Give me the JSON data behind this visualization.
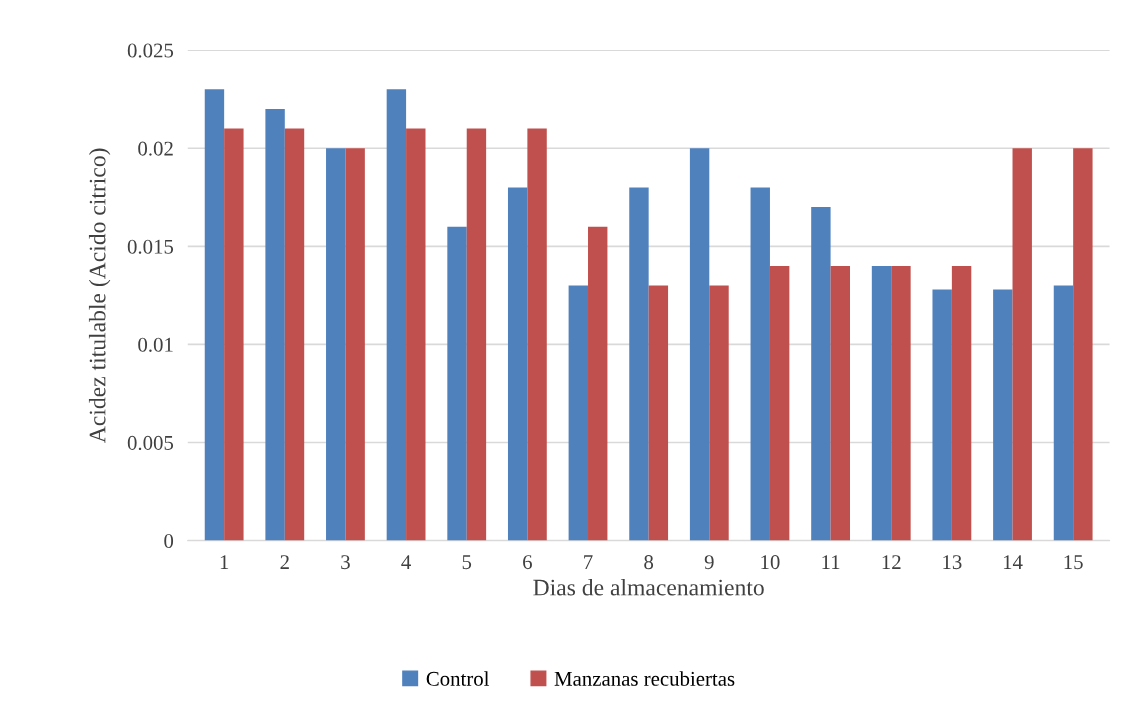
{
  "chart_data": {
    "type": "bar",
    "xlabel": "Dias de almacenamiento",
    "ylabel": "Acidez titulable (Acido citrico)",
    "categories": [
      "1",
      "2",
      "3",
      "4",
      "5",
      "6",
      "7",
      "8",
      "9",
      "10",
      "11",
      "12",
      "13",
      "14",
      "15"
    ],
    "series": [
      {
        "name": "Control",
        "color": "#4f81bd",
        "values": [
          0.023,
          0.022,
          0.02,
          0.023,
          0.016,
          0.018,
          0.013,
          0.018,
          0.02,
          0.018,
          0.017,
          0.014,
          0.0128,
          0.0128,
          0.013
        ]
      },
      {
        "name": "Manzanas recubiertas",
        "color": "#c0504d",
        "values": [
          0.021,
          0.021,
          0.02,
          0.021,
          0.021,
          0.021,
          0.016,
          0.013,
          0.013,
          0.014,
          0.014,
          0.014,
          0.014,
          0.02,
          0.02
        ]
      }
    ],
    "ylim": [
      0,
      0.025
    ],
    "yticks": [
      0,
      0.005,
      0.01,
      0.015,
      0.02,
      0.025
    ],
    "grid": "y",
    "legend": "bottom"
  }
}
